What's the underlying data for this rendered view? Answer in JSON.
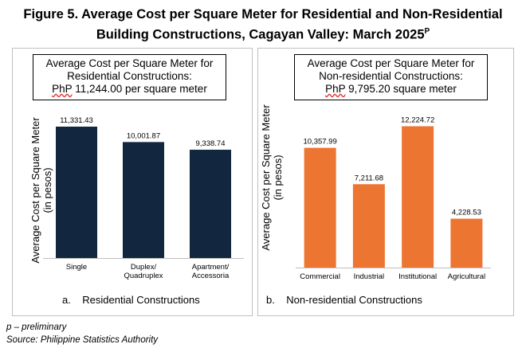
{
  "figure": {
    "title_line1": "Figure 5. Average Cost per Square Meter for Residential and Non-Residential",
    "title_line2": "Building Constructions, Cagayan Valley: March 2025",
    "title_superscript": "P"
  },
  "footnotes": {
    "preliminary": "p – preliminary",
    "source": "Source: Philippine Statistics Authority"
  },
  "panels": [
    {
      "box_line1": "Average Cost per Square Meter for",
      "box_line2": "Residential Constructions:",
      "box_code": "PhP",
      "box_amount": " 11,244.00 per square meter",
      "caption_letter": "a.",
      "caption_text": "Residential Constructions",
      "bar_color": "#12263f"
    },
    {
      "box_line1": "Average Cost per Square Meter for",
      "box_line2": "Non-residential Constructions:",
      "box_code": "PhP",
      "box_amount": " 9,795.20 square meter",
      "caption_letter": "b.",
      "caption_text": "Non-residential Constructions",
      "bar_color": "#ed7532"
    }
  ],
  "chart_data": [
    {
      "type": "bar",
      "ylabel_line1": "Average Cost per Square Meter",
      "ylabel_line2": "(in pesos)",
      "categories": [
        [
          "Single"
        ],
        [
          "Duplex/",
          "Quadruplex"
        ],
        [
          "Apartment/",
          "Accessoria"
        ]
      ],
      "values": [
        11331.43,
        10001.87,
        9338.74
      ],
      "value_labels": [
        "11,331.43",
        "10,001.87",
        "9,338.74"
      ],
      "ylim": [
        0,
        12500
      ],
      "grid": false
    },
    {
      "type": "bar",
      "ylabel_line1": "Average Cost per Square Meter",
      "ylabel_line2": "(in pesos)",
      "categories": [
        [
          "Commercial"
        ],
        [
          "Industrial"
        ],
        [
          "Institutional"
        ],
        [
          "Agricultural"
        ]
      ],
      "values": [
        10357.99,
        7211.68,
        12224.72,
        4228.53
      ],
      "value_labels": [
        "10,357.99",
        "7,211.68",
        "12,224.72",
        "4,228.53"
      ],
      "ylim": [
        0,
        13500
      ],
      "grid": false
    }
  ]
}
